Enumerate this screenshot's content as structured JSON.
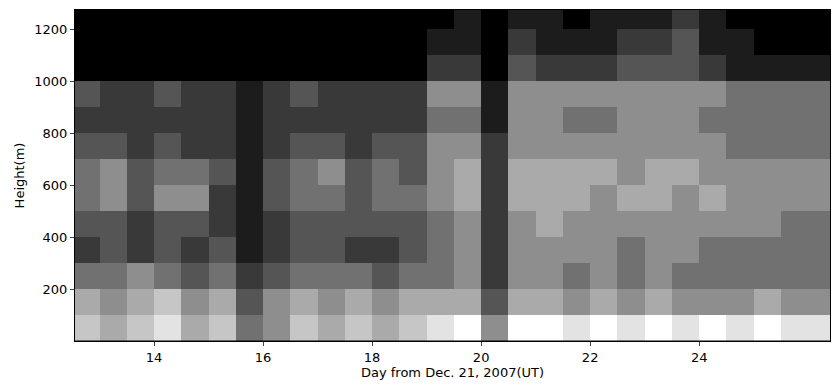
{
  "chart_data": {
    "type": "heatmap",
    "x_label": "Day from Dec. 21, 2007(UT)",
    "y_label": "Height(m)",
    "x": [
      12.75,
      13.25,
      13.75,
      14.25,
      14.75,
      15.25,
      15.75,
      16.25,
      16.75,
      17.25,
      17.75,
      18.25,
      18.75,
      19.25,
      19.75,
      20.25,
      20.75,
      21.25,
      21.75,
      22.25,
      22.75,
      23.25,
      23.75,
      24.25,
      24.75,
      25.25,
      25.75,
      26.25
    ],
    "y": [
      50,
      150,
      250,
      350,
      450,
      550,
      650,
      750,
      850,
      950,
      1050,
      1150,
      1250
    ],
    "cells": [
      [
        7,
        6,
        7,
        8,
        6,
        7,
        4,
        5,
        7,
        6,
        7,
        6,
        7,
        8,
        9,
        5,
        9,
        9,
        8,
        9,
        8,
        9,
        8,
        9,
        8,
        9,
        8,
        8
      ],
      [
        6,
        5,
        6,
        7,
        5,
        6,
        3,
        5,
        6,
        5,
        6,
        5,
        6,
        6,
        6,
        3,
        6,
        6,
        5,
        6,
        5,
        6,
        5,
        5,
        5,
        6,
        5,
        5
      ],
      [
        4,
        4,
        5,
        4,
        3,
        4,
        2,
        3,
        4,
        4,
        4,
        3,
        4,
        4,
        5,
        2,
        5,
        5,
        4,
        5,
        4,
        5,
        4,
        4,
        4,
        4,
        4,
        4
      ],
      [
        2,
        3,
        2,
        3,
        2,
        3,
        1,
        2,
        3,
        3,
        2,
        2,
        3,
        4,
        5,
        2,
        5,
        5,
        5,
        5,
        4,
        5,
        5,
        4,
        4,
        4,
        4,
        4
      ],
      [
        3,
        3,
        2,
        3,
        3,
        2,
        1,
        2,
        3,
        3,
        3,
        3,
        3,
        4,
        5,
        2,
        5,
        6,
        5,
        5,
        5,
        5,
        5,
        5,
        5,
        5,
        4,
        4
      ],
      [
        4,
        5,
        3,
        5,
        5,
        2,
        1,
        3,
        4,
        4,
        3,
        4,
        4,
        5,
        6,
        2,
        6,
        6,
        6,
        5,
        6,
        6,
        5,
        6,
        5,
        5,
        5,
        5
      ],
      [
        4,
        5,
        3,
        4,
        4,
        3,
        1,
        3,
        4,
        5,
        3,
        4,
        3,
        5,
        6,
        2,
        6,
        6,
        6,
        6,
        5,
        6,
        6,
        5,
        5,
        5,
        5,
        5
      ],
      [
        3,
        3,
        2,
        3,
        2,
        2,
        1,
        2,
        3,
        3,
        2,
        3,
        3,
        5,
        5,
        2,
        5,
        5,
        5,
        5,
        5,
        5,
        5,
        5,
        4,
        4,
        4,
        4
      ],
      [
        2,
        2,
        2,
        2,
        2,
        2,
        1,
        2,
        2,
        2,
        2,
        2,
        2,
        4,
        4,
        1,
        5,
        5,
        4,
        4,
        5,
        5,
        5,
        4,
        4,
        4,
        4,
        4
      ],
      [
        3,
        2,
        2,
        3,
        2,
        2,
        1,
        2,
        3,
        2,
        2,
        2,
        2,
        5,
        5,
        1,
        5,
        5,
        5,
        5,
        5,
        5,
        5,
        5,
        4,
        4,
        4,
        4
      ],
      [
        0,
        0,
        0,
        0,
        0,
        0,
        0,
        0,
        0,
        0,
        0,
        0,
        0,
        2,
        2,
        0,
        3,
        2,
        2,
        2,
        3,
        3,
        3,
        2,
        1,
        1,
        1,
        1
      ],
      [
        0,
        0,
        0,
        0,
        0,
        0,
        0,
        0,
        0,
        0,
        0,
        0,
        0,
        1,
        1,
        0,
        2,
        1,
        1,
        1,
        2,
        2,
        3,
        1,
        1,
        0,
        0,
        0
      ],
      [
        0,
        0,
        0,
        0,
        0,
        0,
        0,
        0,
        0,
        0,
        0,
        0,
        0,
        0,
        1,
        0,
        1,
        1,
        0,
        1,
        1,
        1,
        2,
        1,
        0,
        0,
        0,
        0
      ]
    ],
    "zlim": [
      0,
      9
    ],
    "xlim": [
      12.55,
      26.4
    ],
    "ylim": [
      0,
      1275
    ],
    "xticks": [
      14,
      16,
      18,
      20,
      22,
      24
    ],
    "yticks": [
      200,
      400,
      600,
      800,
      1000,
      1200
    ],
    "grid": false
  }
}
